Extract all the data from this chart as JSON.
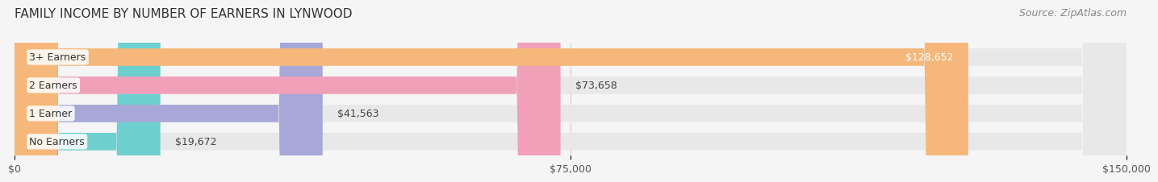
{
  "title": "FAMILY INCOME BY NUMBER OF EARNERS IN LYNWOOD",
  "source": "Source: ZipAtlas.com",
  "categories": [
    "No Earners",
    "1 Earner",
    "2 Earners",
    "3+ Earners"
  ],
  "values": [
    19672,
    41563,
    73658,
    128652
  ],
  "bar_colors": [
    "#6ecfcf",
    "#a8a8d8",
    "#f0a0b8",
    "#f5b87a"
  ],
  "bar_edge_colors": [
    "#5bbfbf",
    "#9898c8",
    "#e090a8",
    "#e5a86a"
  ],
  "label_colors": [
    "#333333",
    "#333333",
    "#333333",
    "#ffffff"
  ],
  "value_labels": [
    "$19,672",
    "$41,563",
    "$73,658",
    "$128,652"
  ],
  "xlim": [
    0,
    150000
  ],
  "xticks": [
    0,
    75000,
    150000
  ],
  "xticklabels": [
    "$0",
    "$75,000",
    "$150,000"
  ],
  "background_color": "#f0f0f0",
  "bar_background_color": "#e8e8e8",
  "title_fontsize": 11,
  "source_fontsize": 9,
  "label_fontsize": 9,
  "value_fontsize": 9,
  "tick_fontsize": 9,
  "bar_height": 0.62,
  "bar_gap": 0.05
}
